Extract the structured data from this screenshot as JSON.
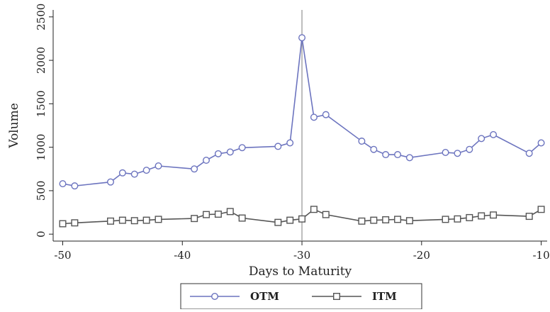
{
  "chart_data": {
    "type": "line",
    "xlabel": "Days to Maturity",
    "ylabel": "Volume",
    "xlim": [
      -50.8,
      -9.5
    ],
    "ylim": [
      -80,
      2580
    ],
    "x_ticks": [
      -50,
      -40,
      -30,
      -20,
      -10
    ],
    "x_tick_labels": [
      "-50",
      "-40",
      "-30",
      "-20",
      "-10"
    ],
    "y_ticks": [
      0,
      500,
      1000,
      1500,
      2000,
      2500
    ],
    "y_tick_labels": [
      "0",
      "500",
      "1000",
      "1500",
      "2000",
      "2500"
    ],
    "reference_line_x": -30,
    "grid": false,
    "legend_position": "bottom",
    "series": [
      {
        "name": "OTM",
        "color": "#6c74bf",
        "marker": "circle",
        "x": [
          -50,
          -49,
          -46,
          -45,
          -44,
          -43,
          -42,
          -39,
          -38,
          -37,
          -36,
          -35,
          -32,
          -31,
          -30,
          -29,
          -28,
          -25,
          -24,
          -23,
          -22,
          -21,
          -18,
          -17,
          -16,
          -15,
          -14,
          -11,
          -10
        ],
        "y": [
          580,
          555,
          600,
          705,
          690,
          735,
          785,
          750,
          850,
          925,
          945,
          995,
          1010,
          1050,
          2260,
          1345,
          1375,
          1070,
          975,
          915,
          915,
          880,
          940,
          930,
          975,
          1100,
          1145,
          930,
          1050
        ]
      },
      {
        "name": "ITM",
        "color": "#555555",
        "marker": "square",
        "x": [
          -50,
          -49,
          -46,
          -45,
          -44,
          -43,
          -42,
          -39,
          -38,
          -37,
          -36,
          -35,
          -32,
          -31,
          -30,
          -29,
          -28,
          -25,
          -24,
          -23,
          -22,
          -21,
          -18,
          -17,
          -16,
          -15,
          -14,
          -11,
          -10
        ],
        "y": [
          120,
          130,
          150,
          160,
          155,
          160,
          170,
          180,
          225,
          230,
          260,
          185,
          135,
          160,
          175,
          285,
          225,
          150,
          160,
          165,
          170,
          155,
          170,
          175,
          190,
          210,
          220,
          205,
          285
        ]
      }
    ]
  }
}
